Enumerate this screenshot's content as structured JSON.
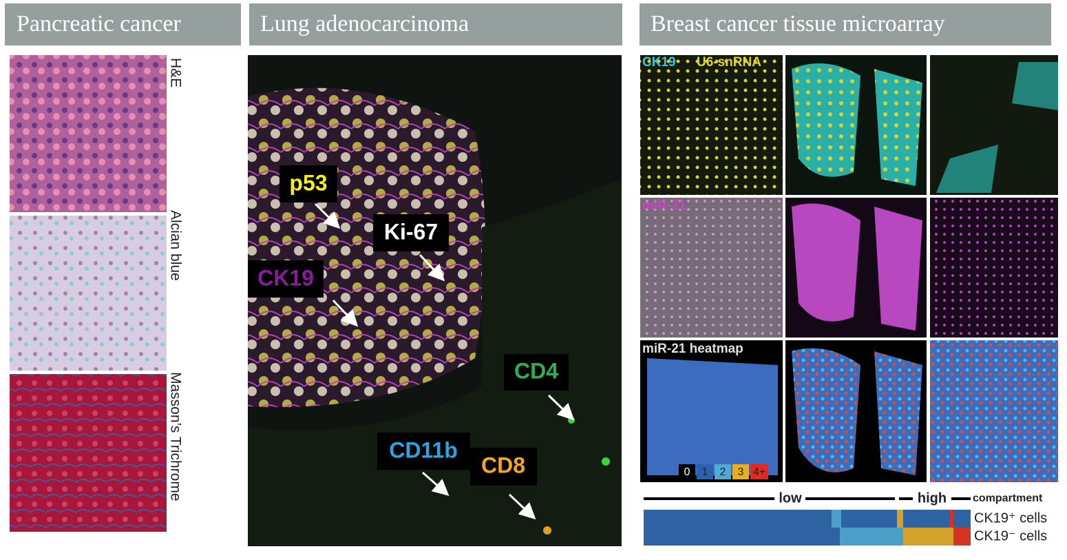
{
  "panels": [
    {
      "title": "Pancreatic cancer",
      "stains": [
        "H&E",
        "Alcian blue",
        "Masson’s Trichrome"
      ]
    },
    {
      "title": "Lung adenocarcinoma",
      "markers": [
        "p53",
        "Ki-67",
        "CK19",
        "CD4",
        "CD11b",
        "CD8"
      ]
    },
    {
      "title": "Breast cancer tissue microarray",
      "channels": [
        "CK19",
        "U6-snRNA",
        "miR-21",
        "miR-21 heatmap"
      ],
      "scale": [
        "0",
        "1",
        "2",
        "3",
        "4+"
      ],
      "bar_labels": [
        "low",
        "high",
        "compartment"
      ],
      "rows": [
        "CK19⁺ cells",
        "CK19⁻ cells"
      ]
    }
  ]
}
